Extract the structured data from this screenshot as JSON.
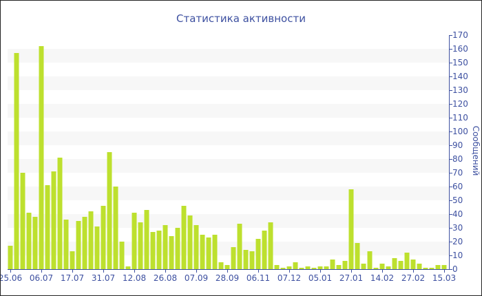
{
  "chart_data": {
    "type": "bar",
    "title": "Статистика активности",
    "ylabel": "Сообщений",
    "xlabel": "",
    "ylim": [
      0,
      170
    ],
    "y_ticks": [
      0,
      10,
      20,
      30,
      40,
      50,
      60,
      70,
      80,
      90,
      100,
      110,
      120,
      130,
      140,
      150,
      160,
      170
    ],
    "y_axis_position": "right",
    "grid": "alternating horizontal bands",
    "x_tick_labels": [
      "25.06",
      "06.07",
      "17.07",
      "31.07",
      "12.08",
      "26.08",
      "07.09",
      "28.09",
      "06.11",
      "07.12",
      "05.01",
      "27.01",
      "14.02",
      "27.02",
      "15.03"
    ],
    "x_tick_every": 5,
    "values": [
      17,
      157,
      70,
      41,
      38,
      162,
      61,
      71,
      81,
      36,
      13,
      35,
      38,
      42,
      31,
      46,
      85,
      60,
      20,
      2,
      41,
      34,
      43,
      27,
      28,
      32,
      24,
      30,
      46,
      39,
      32,
      25,
      23,
      25,
      5,
      3,
      16,
      33,
      14,
      13,
      22,
      28,
      34,
      3,
      1,
      2,
      5,
      1,
      2,
      1,
      2,
      2,
      7,
      3,
      6,
      58,
      19,
      4,
      13,
      1,
      4,
      2,
      8,
      6,
      12,
      7,
      4,
      1,
      1,
      3,
      3
    ],
    "colors": {
      "bar": "#bde02e",
      "text": "#3d50a0",
      "axis": "#3d50a0",
      "band": "#f7f7f7"
    }
  }
}
